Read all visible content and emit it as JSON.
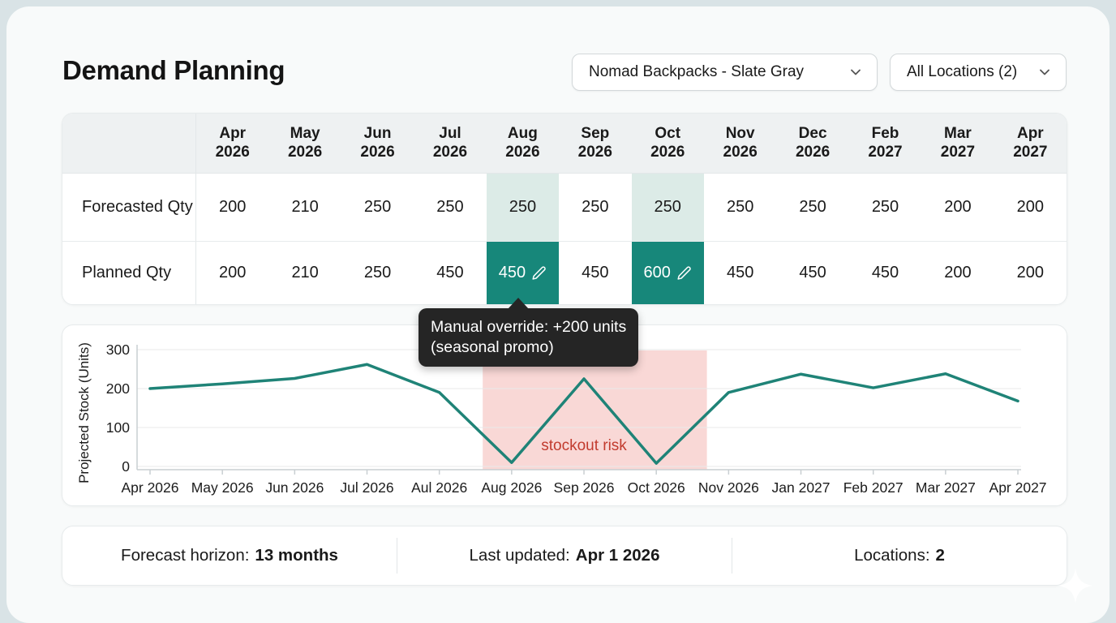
{
  "page": {
    "title": "Demand Planning"
  },
  "filters": {
    "product_selected": "Nomad Backpacks - Slate Gray",
    "locations_selected": "All Locations (2)"
  },
  "icons": {
    "dropdown_chevron": "chevron-down",
    "cell_edit": "pencil",
    "decor": "sparkle"
  },
  "colors": {
    "accent_teal": "#17877a",
    "highlight_teal": "#dcebe7",
    "risk_pink": "#f9d8d6",
    "risk_text": "#c23b2e",
    "tooltip_bg": "#252525"
  },
  "table": {
    "columns": [
      {
        "month": "Apr",
        "year": "2026"
      },
      {
        "month": "May",
        "year": "2026"
      },
      {
        "month": "Jun",
        "year": "2026"
      },
      {
        "month": "Jul",
        "year": "2026"
      },
      {
        "month": "Aug",
        "year": "2026"
      },
      {
        "month": "Sep",
        "year": "2026"
      },
      {
        "month": "Oct",
        "year": "2026"
      },
      {
        "month": "Nov",
        "year": "2026"
      },
      {
        "month": "Dec",
        "year": "2026"
      },
      {
        "month": "Feb",
        "year": "2027"
      },
      {
        "month": "Mar",
        "year": "2027"
      },
      {
        "month": "Apr",
        "year": "2027"
      }
    ],
    "rows": [
      {
        "label": "Forecasted Qty",
        "values": [
          "200",
          "210",
          "250",
          "250",
          "250",
          "250",
          "250",
          "250",
          "250",
          "250",
          "200",
          "200"
        ],
        "highlighted_columns": [
          4,
          6
        ]
      },
      {
        "label": "Planned Qty",
        "values": [
          "200",
          "210",
          "250",
          "450",
          "450",
          "450",
          "600",
          "450",
          "450",
          "450",
          "200",
          "200"
        ],
        "edited_columns": [
          4,
          6
        ]
      }
    ]
  },
  "tooltip": {
    "line1": "Manual override: +200 units",
    "line2": "(seasonal promo)"
  },
  "chart_data": {
    "type": "line",
    "title": "",
    "xlabel": "",
    "ylabel": "Projected Stock (Units)",
    "x": [
      "Apr 2026",
      "May 2026",
      "Jun 2026",
      "Jul 2026",
      "Aul 2026",
      "Aug 2026",
      "Sep 2026",
      "Oct 2026",
      "Nov 2026",
      "Jan 2027",
      "Feb 2027",
      "Mar 2027",
      "Apr 2027"
    ],
    "values": [
      200,
      212,
      226,
      262,
      190,
      10,
      225,
      8,
      190,
      237,
      202,
      238,
      168
    ],
    "ylim": [
      0,
      300
    ],
    "yticks": [
      0,
      100,
      200,
      300
    ],
    "grid": true,
    "legend": "none",
    "line_color": "#1f8377",
    "risk_region": {
      "label": "stockout risk",
      "x_start_index": 4.6,
      "x_end_index": 7.7,
      "label_x_index": 6,
      "label_value_y": 42,
      "color": "#f9d8d6",
      "label_color": "#c23b2e"
    }
  },
  "footer": {
    "items": [
      {
        "label": "Forecast horizon:",
        "value": "13 months"
      },
      {
        "label": "Last updated:",
        "value": "Apr 1 2026"
      },
      {
        "label": "Locations:",
        "value": "2"
      }
    ]
  }
}
